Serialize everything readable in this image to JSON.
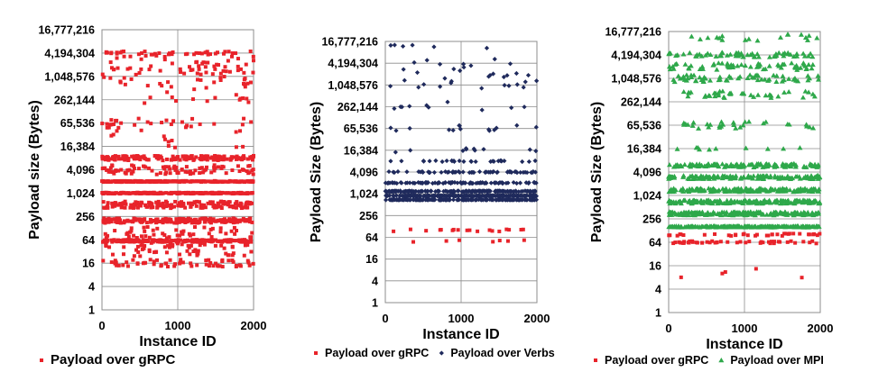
{
  "chart_data": [
    {
      "type": "scatter",
      "xlabel": "Instance ID",
      "ylabel": "Payload size (Bytes)",
      "xlim": [
        0,
        2000
      ],
      "xticks": [
        0,
        1000,
        2000
      ],
      "y_scale": "log2",
      "yticks": [
        1,
        4,
        16,
        64,
        256,
        1024,
        4096,
        16384,
        65536,
        262144,
        1048576,
        4194304,
        16777216
      ],
      "ytick_labels": [
        "1",
        "4",
        "16",
        "64",
        "256",
        "1,024",
        "4,096",
        "16,384",
        "65,536",
        "262,144",
        "1,048,576",
        "4,194,304",
        "16,777,216"
      ],
      "grid": true,
      "legend_position": "bottom",
      "series": [
        {
          "name": "Payload over gRPC",
          "color": "#e8232a",
          "marker": "square",
          "bands": [
            {
              "y": 4194304,
              "n": 40,
              "spread": 0.15
            },
            {
              "y": 2097152,
              "n": 45,
              "spread": 0.8
            },
            {
              "y": 1048576,
              "n": 40,
              "spread": 0.9
            },
            {
              "y": 400000,
              "n": 18,
              "spread": 0.9
            },
            {
              "y": 65536,
              "n": 30,
              "spread": 0.4
            },
            {
              "y": 25000,
              "n": 14,
              "spread": 0.8
            },
            {
              "y": 8192,
              "n": 150,
              "spread": 0.2
            },
            {
              "y": 4096,
              "n": 90,
              "spread": 0.4
            },
            {
              "y": 2048,
              "n": 220,
              "spread": 0.05
            },
            {
              "y": 1024,
              "n": 220,
              "spread": 0.05
            },
            {
              "y": 512,
              "n": 160,
              "spread": 0.3
            },
            {
              "y": 200,
              "n": 200,
              "spread": 0.2
            },
            {
              "y": 100,
              "n": 50,
              "spread": 0.5
            },
            {
              "y": 60,
              "n": 220,
              "spread": 0.1
            },
            {
              "y": 35,
              "n": 60,
              "spread": 0.6
            },
            {
              "y": 16,
              "n": 60,
              "spread": 0.3
            }
          ]
        }
      ]
    },
    {
      "type": "scatter",
      "xlabel": "Instance ID",
      "ylabel": "Payload Size (Bytes)",
      "xlim": [
        0,
        2000
      ],
      "xticks": [
        0,
        1000,
        2000
      ],
      "y_scale": "log2",
      "yticks": [
        1,
        4,
        16,
        64,
        256,
        1024,
        4096,
        16384,
        65536,
        262144,
        1048576,
        4194304,
        16777216
      ],
      "ytick_labels": [
        "1",
        "4",
        "16",
        "64",
        "256",
        "1,024",
        "4,096",
        "16,384",
        "65,536",
        "262,144",
        "1,048,576",
        "4,194,304",
        "16,777,216"
      ],
      "grid": true,
      "legend_position": "bottom",
      "series": [
        {
          "name": "Payload over gRPC",
          "color": "#e8232a",
          "marker": "square",
          "bands": [
            {
              "y": 100,
              "n": 18,
              "spread": 0.1
            },
            {
              "y": 50,
              "n": 7,
              "spread": 0.1
            }
          ]
        },
        {
          "name": "Payload over Verbs",
          "color": "#1f2a5c",
          "marker": "diamond",
          "bands": [
            {
              "y": 12000000,
              "n": 6,
              "spread": 0.2
            },
            {
              "y": 4194304,
              "n": 8,
              "spread": 0.4
            },
            {
              "y": 2097152,
              "n": 12,
              "spread": 0.5
            },
            {
              "y": 1048576,
              "n": 14,
              "spread": 0.5
            },
            {
              "y": 262144,
              "n": 10,
              "spread": 0.5
            },
            {
              "y": 65536,
              "n": 14,
              "spread": 0.3
            },
            {
              "y": 16384,
              "n": 10,
              "spread": 0.2
            },
            {
              "y": 8192,
              "n": 28,
              "spread": 0.05
            },
            {
              "y": 4096,
              "n": 60,
              "spread": 0.05
            },
            {
              "y": 2048,
              "n": 90,
              "spread": 0.05
            },
            {
              "y": 1200,
              "n": 170,
              "spread": 0.05
            },
            {
              "y": 900,
              "n": 200,
              "spread": 0.03
            },
            {
              "y": 700,
              "n": 220,
              "spread": 0.02
            }
          ]
        }
      ]
    },
    {
      "type": "scatter",
      "xlabel": "Instance ID",
      "ylabel": "Payload Size (Bytes)",
      "xlim": [
        0,
        2000
      ],
      "xticks": [
        0,
        1000,
        2000
      ],
      "y_scale": "log2",
      "yticks": [
        1,
        4,
        16,
        64,
        256,
        1024,
        4096,
        16384,
        65536,
        262144,
        1048576,
        4194304,
        16777216
      ],
      "ytick_labels": [
        "1",
        "4",
        "16",
        "64",
        "256",
        "1,024",
        "4,096",
        "16,384",
        "65,536",
        "262,144",
        "1,048,576",
        "4,194,304",
        "16,777,216"
      ],
      "grid": true,
      "legend_position": "bottom",
      "series": [
        {
          "name": "Payload over gRPC",
          "color": "#e8232a",
          "marker": "square",
          "bands": [
            {
              "y": 100,
              "n": 35,
              "spread": 0.1
            },
            {
              "y": 64,
              "n": 45,
              "spread": 0.1
            },
            {
              "y": 12,
              "n": 5,
              "spread": 0.6
            }
          ]
        },
        {
          "name": "Payload over MPI",
          "color": "#2ea84a",
          "marker": "triangle",
          "bands": [
            {
              "y": 12000000,
              "n": 18,
              "spread": 0.3
            },
            {
              "y": 4194304,
              "n": 60,
              "spread": 0.2
            },
            {
              "y": 2097152,
              "n": 60,
              "spread": 0.3
            },
            {
              "y": 1048576,
              "n": 60,
              "spread": 0.3
            },
            {
              "y": 400000,
              "n": 40,
              "spread": 0.3
            },
            {
              "y": 65536,
              "n": 30,
              "spread": 0.3
            },
            {
              "y": 16384,
              "n": 10,
              "spread": 0.1
            },
            {
              "y": 6000,
              "n": 120,
              "spread": 0.15
            },
            {
              "y": 3000,
              "n": 140,
              "spread": 0.15
            },
            {
              "y": 1400,
              "n": 160,
              "spread": 0.15
            },
            {
              "y": 700,
              "n": 180,
              "spread": 0.15
            },
            {
              "y": 350,
              "n": 180,
              "spread": 0.15
            },
            {
              "y": 160,
              "n": 220,
              "spread": 0.05
            }
          ]
        }
      ]
    }
  ]
}
